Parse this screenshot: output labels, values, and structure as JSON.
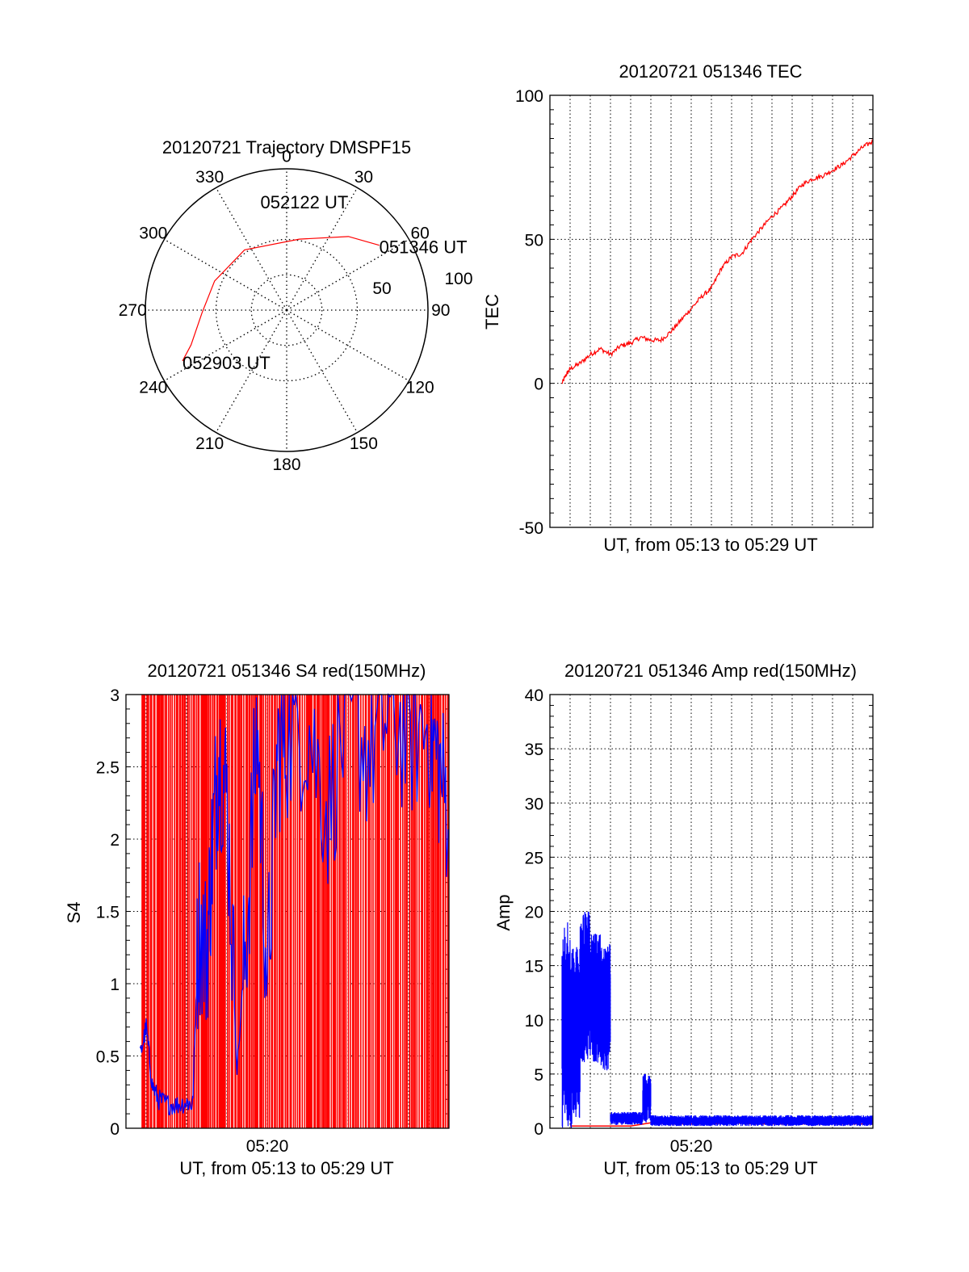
{
  "colors": {
    "red": "#ff0000",
    "blue": "#0000ff",
    "axis": "#000000",
    "grid": "#000000"
  },
  "chart_data": [
    {
      "type": "polar",
      "title": "20120721 Trajectory DMSPF15",
      "angle_labels": [
        "0",
        "30",
        "60",
        "90",
        "120",
        "150",
        "180",
        "210",
        "240",
        "270",
        "300",
        "330"
      ],
      "radial_labels": [
        "50",
        "100"
      ],
      "radial_range": [
        0,
        100
      ],
      "grid": true,
      "series": [
        {
          "color": "red",
          "points": [
            {
              "azimuth": 55,
              "radius": 80
            },
            {
              "azimuth": 40,
              "radius": 68
            },
            {
              "azimuth": 10,
              "radius": 51
            },
            {
              "azimuth": 325,
              "radius": 52
            },
            {
              "azimuth": 292,
              "radius": 55
            },
            {
              "azimuth": 268,
              "radius": 60
            },
            {
              "azimuth": 250,
              "radius": 72
            },
            {
              "azimuth": 244,
              "radius": 82
            }
          ]
        }
      ],
      "annotations": [
        {
          "text": "051346 UT",
          "azimuth": 55,
          "radius": 80
        },
        {
          "text": "052122 UT",
          "azimuth": 10,
          "radius": 51
        },
        {
          "text": "052903 UT",
          "azimuth": 244,
          "radius": 82
        }
      ]
    },
    {
      "type": "line",
      "title": "20120721 051346 TEC",
      "xlabel": "UT, from 05:13 to 05:29 UT",
      "ylabel": "TEC",
      "xlim": [
        0,
        16
      ],
      "ylim": [
        -50,
        100
      ],
      "yticks": [
        "-50",
        "0",
        "50",
        "100"
      ],
      "grid": true,
      "series": [
        {
          "color": "red",
          "x": [
            0.6,
            0.8,
            1.0,
            1.5,
            2.0,
            2.5,
            3.0,
            3.5,
            4.0,
            4.5,
            5.0,
            5.5,
            6.0,
            6.5,
            7.0,
            7.5,
            8.0,
            8.5,
            9.0,
            9.5,
            10.0,
            10.5,
            11.0,
            11.5,
            12.0,
            12.5,
            13.0,
            13.5,
            14.0,
            14.5,
            15.0,
            15.5,
            16.0
          ],
          "y": [
            0,
            3,
            5,
            7,
            10,
            12,
            10,
            13,
            14,
            16,
            15,
            15,
            18,
            22,
            26,
            30,
            33,
            40,
            44,
            45,
            50,
            54,
            58,
            61,
            65,
            69,
            71,
            72,
            74,
            76,
            79,
            82,
            84
          ]
        }
      ]
    },
    {
      "type": "line",
      "title": "20120721 051346 S4 red(150MHz)",
      "xlabel": "UT, from 05:13 to 05:29 UT",
      "ylabel": "S4",
      "xticks": [
        "05:20"
      ],
      "xlim": [
        0,
        16
      ],
      "ylim": [
        0,
        3
      ],
      "yticks": [
        "0",
        "0.5",
        "1",
        "1.5",
        "2",
        "2.5",
        "3"
      ],
      "grid": true,
      "series": [
        {
          "color": "red",
          "style": "dense vertical spikes",
          "x_range": [
            0.8,
            16
          ],
          "values": [
            0,
            3
          ]
        },
        {
          "color": "blue",
          "x": [
            0.7,
            1.0,
            1.3,
            1.6,
            2.0,
            2.5,
            3.0,
            3.3,
            3.6,
            4.0,
            4.3,
            4.6,
            5.0,
            5.5,
            6.0,
            6.5,
            7.0,
            7.5,
            8.0,
            9.0,
            10.0,
            11.0,
            12.0,
            13.0,
            14.0,
            15.0,
            15.5,
            16.0
          ],
          "y": [
            0.5,
            0.7,
            0.3,
            0.2,
            0.17,
            0.16,
            0.18,
            0.16,
            1.4,
            1.2,
            2.0,
            2.6,
            2.3,
            0.4,
            1.4,
            2.8,
            1.0,
            2.6,
            2.7,
            2.8,
            2.2,
            2.9,
            2.6,
            2.9,
            2.7,
            2.8,
            2.5,
            2.2
          ]
        }
      ]
    },
    {
      "type": "line",
      "title": "20120721 051346 Amp red(150MHz)",
      "xlabel": "UT, from 05:13 to 05:29 UT",
      "ylabel": "Amp",
      "xticks": [
        "05:20"
      ],
      "xlim": [
        0,
        16
      ],
      "ylim": [
        0,
        40
      ],
      "yticks": [
        "0",
        "5",
        "10",
        "15",
        "20",
        "25",
        "30",
        "35",
        "40"
      ],
      "grid": true,
      "series": [
        {
          "color": "red",
          "x": [
            1.0,
            2.0,
            3.0,
            4.0,
            5.0,
            6.0,
            7.0,
            8.0,
            9.0,
            10.0,
            11.0,
            12.0,
            13.0,
            14.0,
            15.0,
            16.0
          ],
          "y": [
            0.2,
            0.2,
            0.2,
            0.2,
            0.5,
            0.4,
            0.4,
            0.4,
            0.5,
            0.4,
            0.4,
            0.4,
            0.4,
            0.4,
            0.4,
            0.4
          ]
        },
        {
          "color": "blue",
          "style": "dense band",
          "segments": [
            {
              "x_range": [
                0.6,
                1.0
              ],
              "min": 0,
              "max": 19
            },
            {
              "x_range": [
                1.0,
                1.5
              ],
              "min": 0,
              "max": 17
            },
            {
              "x_range": [
                1.5,
                2.0
              ],
              "min": 6,
              "max": 20
            },
            {
              "x_range": [
                2.0,
                2.5
              ],
              "min": 6,
              "max": 18
            },
            {
              "x_range": [
                2.5,
                3.0
              ],
              "min": 5,
              "max": 17
            },
            {
              "x_range": [
                3.0,
                4.6
              ],
              "min": 0.3,
              "max": 1.5
            },
            {
              "x_range": [
                4.6,
                5.0
              ],
              "min": 0.5,
              "max": 5
            },
            {
              "x_range": [
                5.0,
                16.0
              ],
              "min": 0.2,
              "max": 1.2
            }
          ]
        }
      ]
    }
  ]
}
